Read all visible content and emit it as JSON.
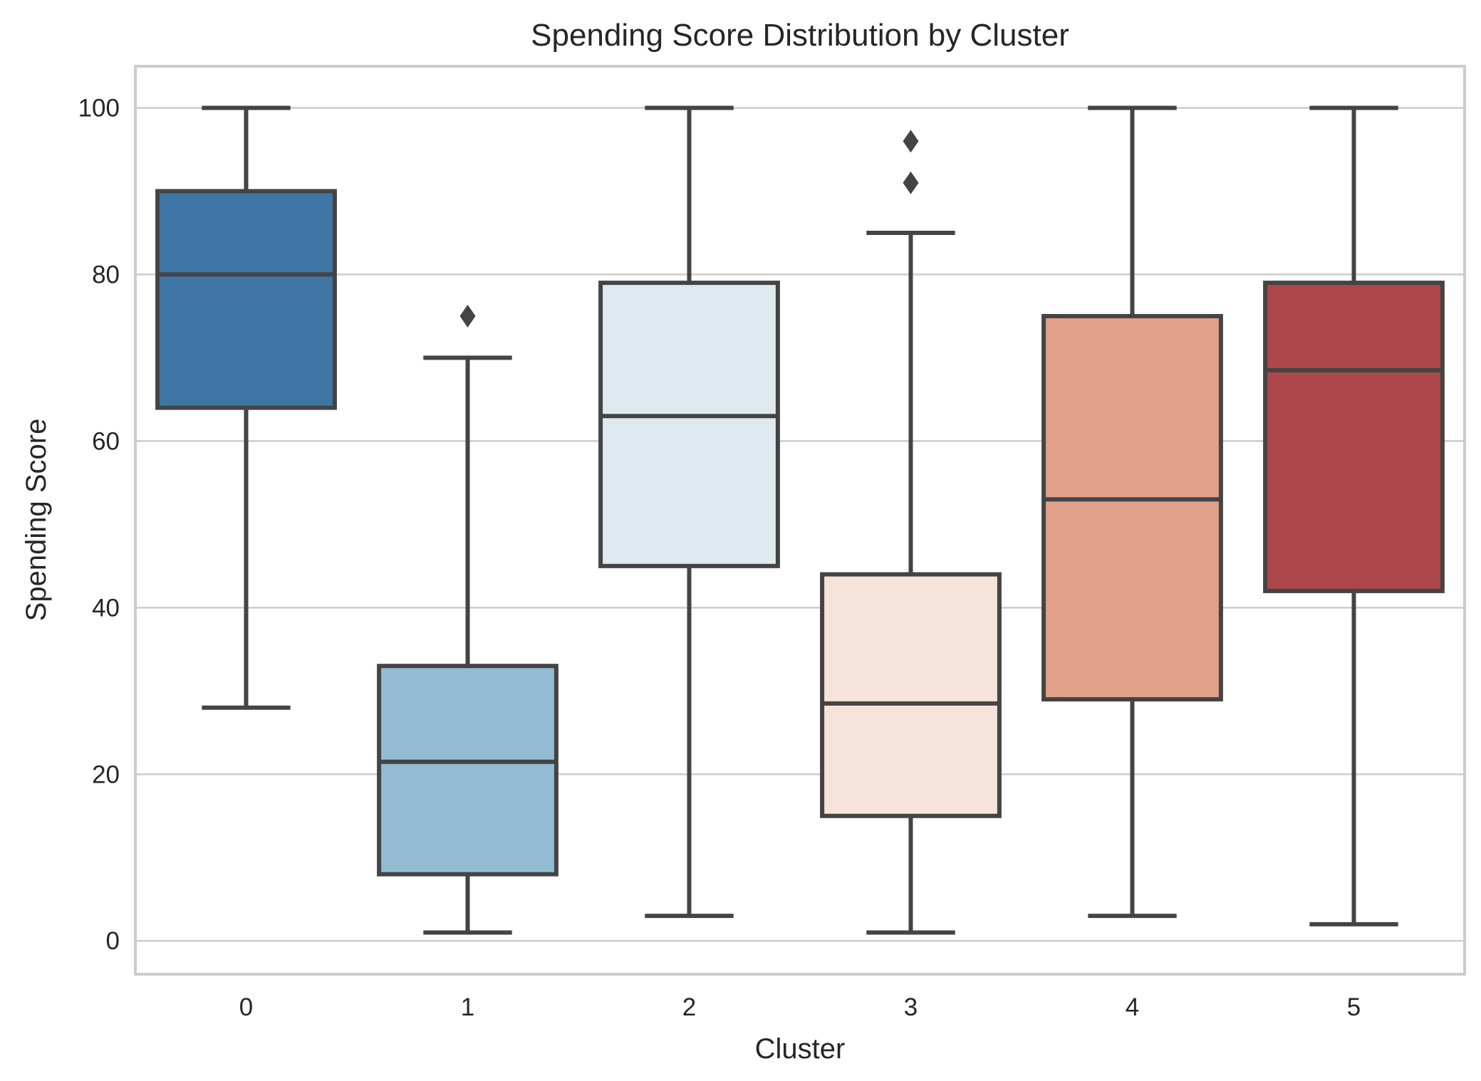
{
  "chart_data": {
    "type": "box",
    "title": "Spending Score Distribution by Cluster",
    "xlabel": "Cluster",
    "ylabel": "Spending Score",
    "ylim": [
      -4,
      105
    ],
    "y_ticks": [
      0,
      20,
      40,
      60,
      80,
      100
    ],
    "y_tick_labels": [
      "0",
      "20",
      "40",
      "60",
      "80",
      "100"
    ],
    "grid": true,
    "categories": [
      "0",
      "1",
      "2",
      "3",
      "4",
      "5"
    ],
    "boxes": [
      {
        "category": "0",
        "color": "#3f76a6",
        "whisker_low": 28,
        "q1": 64,
        "median": 80,
        "q3": 90,
        "whisker_high": 100,
        "outliers": []
      },
      {
        "category": "1",
        "color": "#92bcd1",
        "whisker_low": 1,
        "q1": 8,
        "median": 21.5,
        "q3": 33,
        "whisker_high": 70,
        "outliers": [
          75
        ]
      },
      {
        "category": "2",
        "color": "#dee9f0",
        "whisker_low": 3,
        "q1": 45,
        "median": 63,
        "q3": 79,
        "whisker_high": 100,
        "outliers": []
      },
      {
        "category": "3",
        "color": "#f6e3d9",
        "whisker_low": 1,
        "q1": 15,
        "median": 28.5,
        "q3": 44,
        "whisker_high": 85,
        "outliers": [
          91,
          96
        ]
      },
      {
        "category": "4",
        "color": "#e1a089",
        "whisker_low": 3,
        "q1": 29,
        "median": 53,
        "q3": 75,
        "whisker_high": 100,
        "outliers": []
      },
      {
        "category": "5",
        "color": "#ad474b",
        "whisker_low": 2,
        "q1": 42,
        "median": 68.5,
        "q3": 79,
        "whisker_high": 100,
        "outliers": []
      }
    ]
  }
}
